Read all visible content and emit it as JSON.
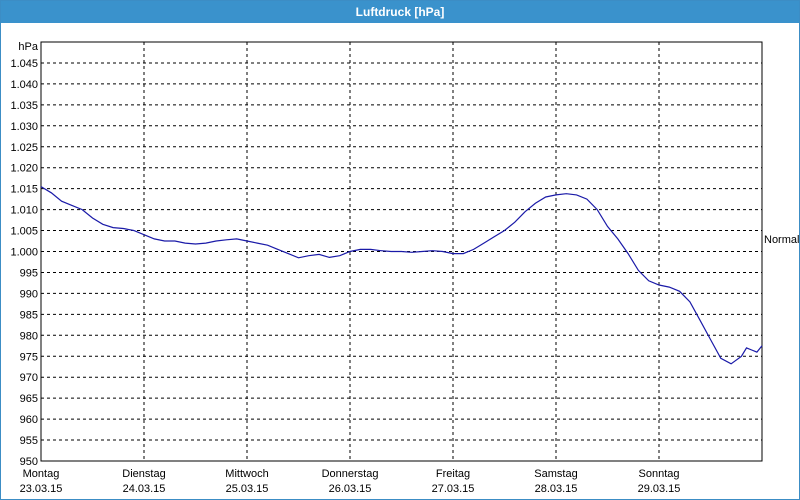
{
  "window": {
    "title": "Luftdruck [hPa]"
  },
  "chart_data": {
    "type": "line",
    "title": "Luftdruck [hPa]",
    "ylabel": "hPa",
    "ylim": [
      950,
      1050
    ],
    "yticks": [
      {
        "value": 1045,
        "label": "1.045"
      },
      {
        "value": 1040,
        "label": "1.040"
      },
      {
        "value": 1035,
        "label": "1.035"
      },
      {
        "value": 1030,
        "label": "1.030"
      },
      {
        "value": 1025,
        "label": "1.025"
      },
      {
        "value": 1020,
        "label": "1.020"
      },
      {
        "value": 1015,
        "label": "1.015"
      },
      {
        "value": 1010,
        "label": "1.010"
      },
      {
        "value": 1005,
        "label": "1.005"
      },
      {
        "value": 1000,
        "label": "1.000"
      },
      {
        "value": 995,
        "label": "995"
      },
      {
        "value": 990,
        "label": "990"
      },
      {
        "value": 985,
        "label": "985"
      },
      {
        "value": 980,
        "label": "980"
      },
      {
        "value": 975,
        "label": "975"
      },
      {
        "value": 970,
        "label": "970"
      },
      {
        "value": 965,
        "label": "965"
      },
      {
        "value": 960,
        "label": "960"
      },
      {
        "value": 955,
        "label": "955"
      },
      {
        "value": 950,
        "label": "950"
      }
    ],
    "xlim": [
      0,
      7
    ],
    "days": [
      {
        "name": "Montag",
        "date": "23.03.15"
      },
      {
        "name": "Dienstag",
        "date": "24.03.15"
      },
      {
        "name": "Mittwoch",
        "date": "25.03.15"
      },
      {
        "name": "Donnerstag",
        "date": "26.03.15"
      },
      {
        "name": "Freitag",
        "date": "27.03.15"
      },
      {
        "name": "Samstag",
        "date": "28.03.15"
      },
      {
        "name": "Sonntag",
        "date": "29.03.15"
      }
    ],
    "reference": {
      "label": "Normal",
      "value": 1003
    },
    "grid": true,
    "line_color": "#1a1aa8",
    "series": [
      {
        "x": [
          0,
          0.1,
          0.2,
          0.3,
          0.4,
          0.5,
          0.6,
          0.7,
          0.8,
          0.9,
          1.0,
          1.1,
          1.2,
          1.3,
          1.4,
          1.5,
          1.6,
          1.7,
          1.8,
          1.9,
          2.0,
          2.1,
          2.2,
          2.3,
          2.4,
          2.5,
          2.6,
          2.7,
          2.8,
          2.9,
          3.0,
          3.1,
          3.2,
          3.3,
          3.4,
          3.5,
          3.6,
          3.7,
          3.8,
          3.9,
          4.0,
          4.1,
          4.2,
          4.3,
          4.4,
          4.5,
          4.6,
          4.7,
          4.8,
          4.9,
          5.0,
          5.1,
          5.2,
          5.3,
          5.4,
          5.5,
          5.6,
          5.7,
          5.8,
          5.9,
          6.0,
          6.1,
          6.2,
          6.3,
          6.4,
          6.5,
          6.6,
          6.7,
          6.8,
          6.85,
          6.9,
          6.95,
          7.0
        ],
        "values": [
          1015.5,
          1014.0,
          1012.0,
          1011.0,
          1010.0,
          1008.0,
          1006.5,
          1005.7,
          1005.5,
          1005.0,
          1004.0,
          1003.0,
          1002.5,
          1002.5,
          1002.0,
          1001.8,
          1002.0,
          1002.5,
          1002.8,
          1003.0,
          1002.5,
          1002.0,
          1001.5,
          1000.5,
          999.5,
          998.5,
          999.0,
          999.3,
          998.6,
          999.0,
          1000.0,
          1000.5,
          1000.5,
          1000.2,
          1000.0,
          1000.0,
          999.8,
          1000.0,
          1000.2,
          1000.0,
          999.5,
          999.5,
          1000.5,
          1002.0,
          1003.5,
          1005.0,
          1007.0,
          1009.5,
          1011.5,
          1013.0,
          1013.5,
          1013.8,
          1013.5,
          1012.5,
          1010.0,
          1006.0,
          1003.0,
          999.5,
          995.5,
          993.0,
          992.0,
          991.5,
          990.5,
          988.0,
          983.5,
          979.0,
          974.5,
          973.2,
          975.0,
          977.0,
          976.5,
          976.0,
          977.5
        ]
      }
    ]
  }
}
